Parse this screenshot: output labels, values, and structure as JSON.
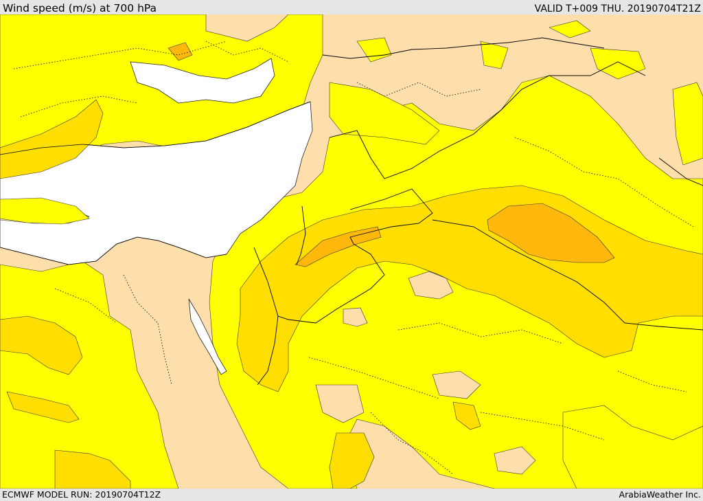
{
  "header": {
    "title": "Wind speed (m/s) at 700 hPa",
    "valid_time": "VALID T+009 THU. 20190704T21Z"
  },
  "footer": {
    "model_run": "ECMWF MODEL RUN: 20190704T12Z",
    "credit": "ArabiaWeather Inc."
  },
  "map": {
    "variable": "wind speed",
    "unit": "m/s",
    "pressure_level": "700 hPa",
    "colors": {
      "sea": "#ffffff",
      "lowest_band": "#fedfac",
      "band_2": "#ffff00",
      "band_3": "#ffde00",
      "band_4": "#ffb80b"
    }
  }
}
